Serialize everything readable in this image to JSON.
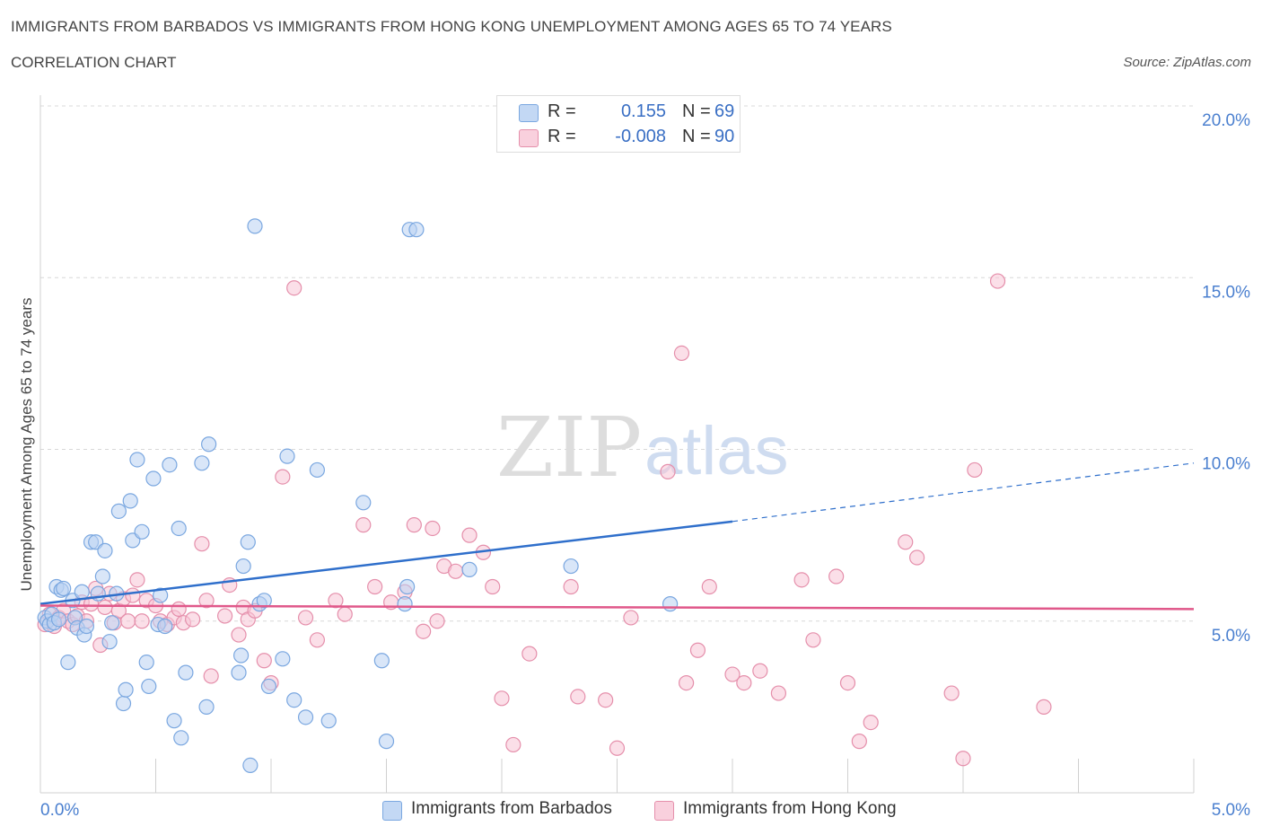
{
  "header": {
    "title": "IMMIGRANTS FROM BARBADOS VS IMMIGRANTS FROM HONG KONG UNEMPLOYMENT AMONG AGES 65 TO 74 YEARS",
    "subtitle": "CORRELATION CHART",
    "source": "Source: ZipAtlas.com"
  },
  "watermark": {
    "zip": "ZIP",
    "atlas": "atlas"
  },
  "legend": {
    "r_label": "R =",
    "n_label": "N =",
    "series": [
      {
        "name": "Immigrants from Barbados",
        "r": "0.155",
        "n": "69"
      },
      {
        "name": "Immigrants from Hong Kong",
        "r": "-0.008",
        "n": "90"
      }
    ]
  },
  "colors": {
    "barbados_fill": "#b9d2f2",
    "barbados_stroke": "#7aa7e0",
    "barbados_line": "#2f6fcb",
    "hongkong_fill": "#f7c5d5",
    "hongkong_stroke": "#e58fab",
    "hongkong_line": "#e0588a",
    "axis_text": "#4a7fcf",
    "grid": "#d8d8d8"
  },
  "chart_data": {
    "type": "scatter",
    "title": "IMMIGRANTS FROM BARBADOS VS IMMIGRANTS FROM HONG KONG UNEMPLOYMENT AMONG AGES 65 TO 74 YEARS",
    "subtitle": "CORRELATION CHART",
    "xlabel": "",
    "ylabel": "Unemployment Among Ages 65 to 74 years",
    "xlim": [
      0,
      5
    ],
    "ylim": [
      0,
      20
    ],
    "x_ticks": [
      "0.0%",
      "5.0%"
    ],
    "y_ticks": [
      {
        "value": 5,
        "label": "5.0%"
      },
      {
        "value": 10,
        "label": "10.0%"
      },
      {
        "value": 15,
        "label": "15.0%"
      },
      {
        "value": 20,
        "label": "20.0%"
      }
    ],
    "grid": "horizontal dashed",
    "legend_position": "top-center",
    "series": [
      {
        "name": "Immigrants from Barbados",
        "r": 0.155,
        "n": 69,
        "trend": {
          "x0": 0,
          "y0": 5.5,
          "x1": 3.0,
          "y1": 7.9,
          "dashed_to_x": 5.0,
          "dashed_to_y": 9.6
        },
        "points": [
          [
            0.02,
            5.1
          ],
          [
            0.03,
            5.0
          ],
          [
            0.04,
            4.9
          ],
          [
            0.05,
            5.2
          ],
          [
            0.06,
            4.95
          ],
          [
            0.07,
            6.0
          ],
          [
            0.08,
            5.05
          ],
          [
            0.09,
            5.9
          ],
          [
            0.1,
            5.95
          ],
          [
            0.12,
            3.8
          ],
          [
            0.14,
            5.6
          ],
          [
            0.15,
            5.1
          ],
          [
            0.16,
            4.8
          ],
          [
            0.18,
            5.85
          ],
          [
            0.19,
            4.6
          ],
          [
            0.2,
            4.85
          ],
          [
            0.22,
            7.3
          ],
          [
            0.24,
            7.3
          ],
          [
            0.25,
            5.8
          ],
          [
            0.27,
            6.3
          ],
          [
            0.28,
            7.05
          ],
          [
            0.3,
            4.4
          ],
          [
            0.31,
            4.95
          ],
          [
            0.33,
            5.8
          ],
          [
            0.34,
            8.2
          ],
          [
            0.36,
            2.6
          ],
          [
            0.37,
            3.0
          ],
          [
            0.39,
            8.5
          ],
          [
            0.4,
            7.35
          ],
          [
            0.42,
            9.7
          ],
          [
            0.44,
            7.6
          ],
          [
            0.46,
            3.8
          ],
          [
            0.47,
            3.1
          ],
          [
            0.49,
            9.15
          ],
          [
            0.51,
            4.9
          ],
          [
            0.52,
            5.75
          ],
          [
            0.54,
            4.85
          ],
          [
            0.56,
            9.55
          ],
          [
            0.58,
            2.1
          ],
          [
            0.6,
            7.7
          ],
          [
            0.61,
            1.6
          ],
          [
            0.63,
            3.5
          ],
          [
            0.7,
            9.6
          ],
          [
            0.72,
            2.5
          ],
          [
            0.73,
            10.15
          ],
          [
            0.86,
            3.5
          ],
          [
            0.87,
            4.0
          ],
          [
            0.88,
            6.6
          ],
          [
            0.9,
            7.3
          ],
          [
            0.91,
            0.8
          ],
          [
            0.93,
            16.5
          ],
          [
            0.95,
            5.5
          ],
          [
            0.97,
            5.6
          ],
          [
            0.99,
            3.1
          ],
          [
            1.05,
            3.9
          ],
          [
            1.07,
            9.8
          ],
          [
            1.1,
            2.7
          ],
          [
            1.15,
            2.2
          ],
          [
            1.2,
            9.4
          ],
          [
            1.25,
            2.1
          ],
          [
            1.4,
            8.45
          ],
          [
            1.48,
            3.85
          ],
          [
            1.5,
            1.5
          ],
          [
            1.58,
            5.5
          ],
          [
            1.59,
            6.0
          ],
          [
            1.6,
            16.4
          ],
          [
            1.63,
            16.4
          ],
          [
            1.86,
            6.5
          ],
          [
            2.3,
            6.6
          ],
          [
            2.73,
            5.5
          ]
        ]
      },
      {
        "name": "Immigrants from Hong Kong",
        "r": -0.008,
        "n": 90,
        "trend": {
          "x0": 0,
          "y0": 5.45,
          "x1": 5.0,
          "y1": 5.35
        },
        "points": [
          [
            0.02,
            4.9
          ],
          [
            0.04,
            5.2
          ],
          [
            0.06,
            4.85
          ],
          [
            0.08,
            5.1
          ],
          [
            0.1,
            5.3
          ],
          [
            0.12,
            5.0
          ],
          [
            0.14,
            4.9
          ],
          [
            0.16,
            5.15
          ],
          [
            0.18,
            5.55
          ],
          [
            0.2,
            5.0
          ],
          [
            0.22,
            5.5
          ],
          [
            0.24,
            5.95
          ],
          [
            0.26,
            4.3
          ],
          [
            0.28,
            5.4
          ],
          [
            0.3,
            5.8
          ],
          [
            0.32,
            4.95
          ],
          [
            0.34,
            5.3
          ],
          [
            0.36,
            5.65
          ],
          [
            0.38,
            5.0
          ],
          [
            0.4,
            5.75
          ],
          [
            0.42,
            6.2
          ],
          [
            0.44,
            5.0
          ],
          [
            0.46,
            5.6
          ],
          [
            0.5,
            5.45
          ],
          [
            0.52,
            5.0
          ],
          [
            0.55,
            4.9
          ],
          [
            0.58,
            5.1
          ],
          [
            0.6,
            5.35
          ],
          [
            0.62,
            4.95
          ],
          [
            0.66,
            5.05
          ],
          [
            0.7,
            7.25
          ],
          [
            0.72,
            5.6
          ],
          [
            0.74,
            3.4
          ],
          [
            0.8,
            5.15
          ],
          [
            0.82,
            6.05
          ],
          [
            0.86,
            4.6
          ],
          [
            0.88,
            5.4
          ],
          [
            0.9,
            5.05
          ],
          [
            0.93,
            5.3
          ],
          [
            0.97,
            3.85
          ],
          [
            1.0,
            3.2
          ],
          [
            1.05,
            9.2
          ],
          [
            1.1,
            14.7
          ],
          [
            1.15,
            5.1
          ],
          [
            1.2,
            4.45
          ],
          [
            1.28,
            5.6
          ],
          [
            1.32,
            5.2
          ],
          [
            1.4,
            7.8
          ],
          [
            1.45,
            6.0
          ],
          [
            1.52,
            5.55
          ],
          [
            1.58,
            5.85
          ],
          [
            1.62,
            7.8
          ],
          [
            1.66,
            4.7
          ],
          [
            1.7,
            7.7
          ],
          [
            1.72,
            5.0
          ],
          [
            1.75,
            6.6
          ],
          [
            1.8,
            6.45
          ],
          [
            1.86,
            7.5
          ],
          [
            1.92,
            7.0
          ],
          [
            1.96,
            6.0
          ],
          [
            2.0,
            2.75
          ],
          [
            2.05,
            1.4
          ],
          [
            2.12,
            4.05
          ],
          [
            2.3,
            6.0
          ],
          [
            2.33,
            2.8
          ],
          [
            2.45,
            2.7
          ],
          [
            2.5,
            1.3
          ],
          [
            2.56,
            5.1
          ],
          [
            2.72,
            9.35
          ],
          [
            2.78,
            12.8
          ],
          [
            2.8,
            3.2
          ],
          [
            2.85,
            4.15
          ],
          [
            2.9,
            6.0
          ],
          [
            3.0,
            3.45
          ],
          [
            3.05,
            3.2
          ],
          [
            3.12,
            3.55
          ],
          [
            3.2,
            2.9
          ],
          [
            3.3,
            6.2
          ],
          [
            3.35,
            4.45
          ],
          [
            3.45,
            6.3
          ],
          [
            3.5,
            3.2
          ],
          [
            3.55,
            1.5
          ],
          [
            3.6,
            2.05
          ],
          [
            3.75,
            7.3
          ],
          [
            3.8,
            6.85
          ],
          [
            3.95,
            2.9
          ],
          [
            4.0,
            1.0
          ],
          [
            4.05,
            9.4
          ],
          [
            4.15,
            14.9
          ],
          [
            4.35,
            2.5
          ]
        ]
      }
    ]
  }
}
